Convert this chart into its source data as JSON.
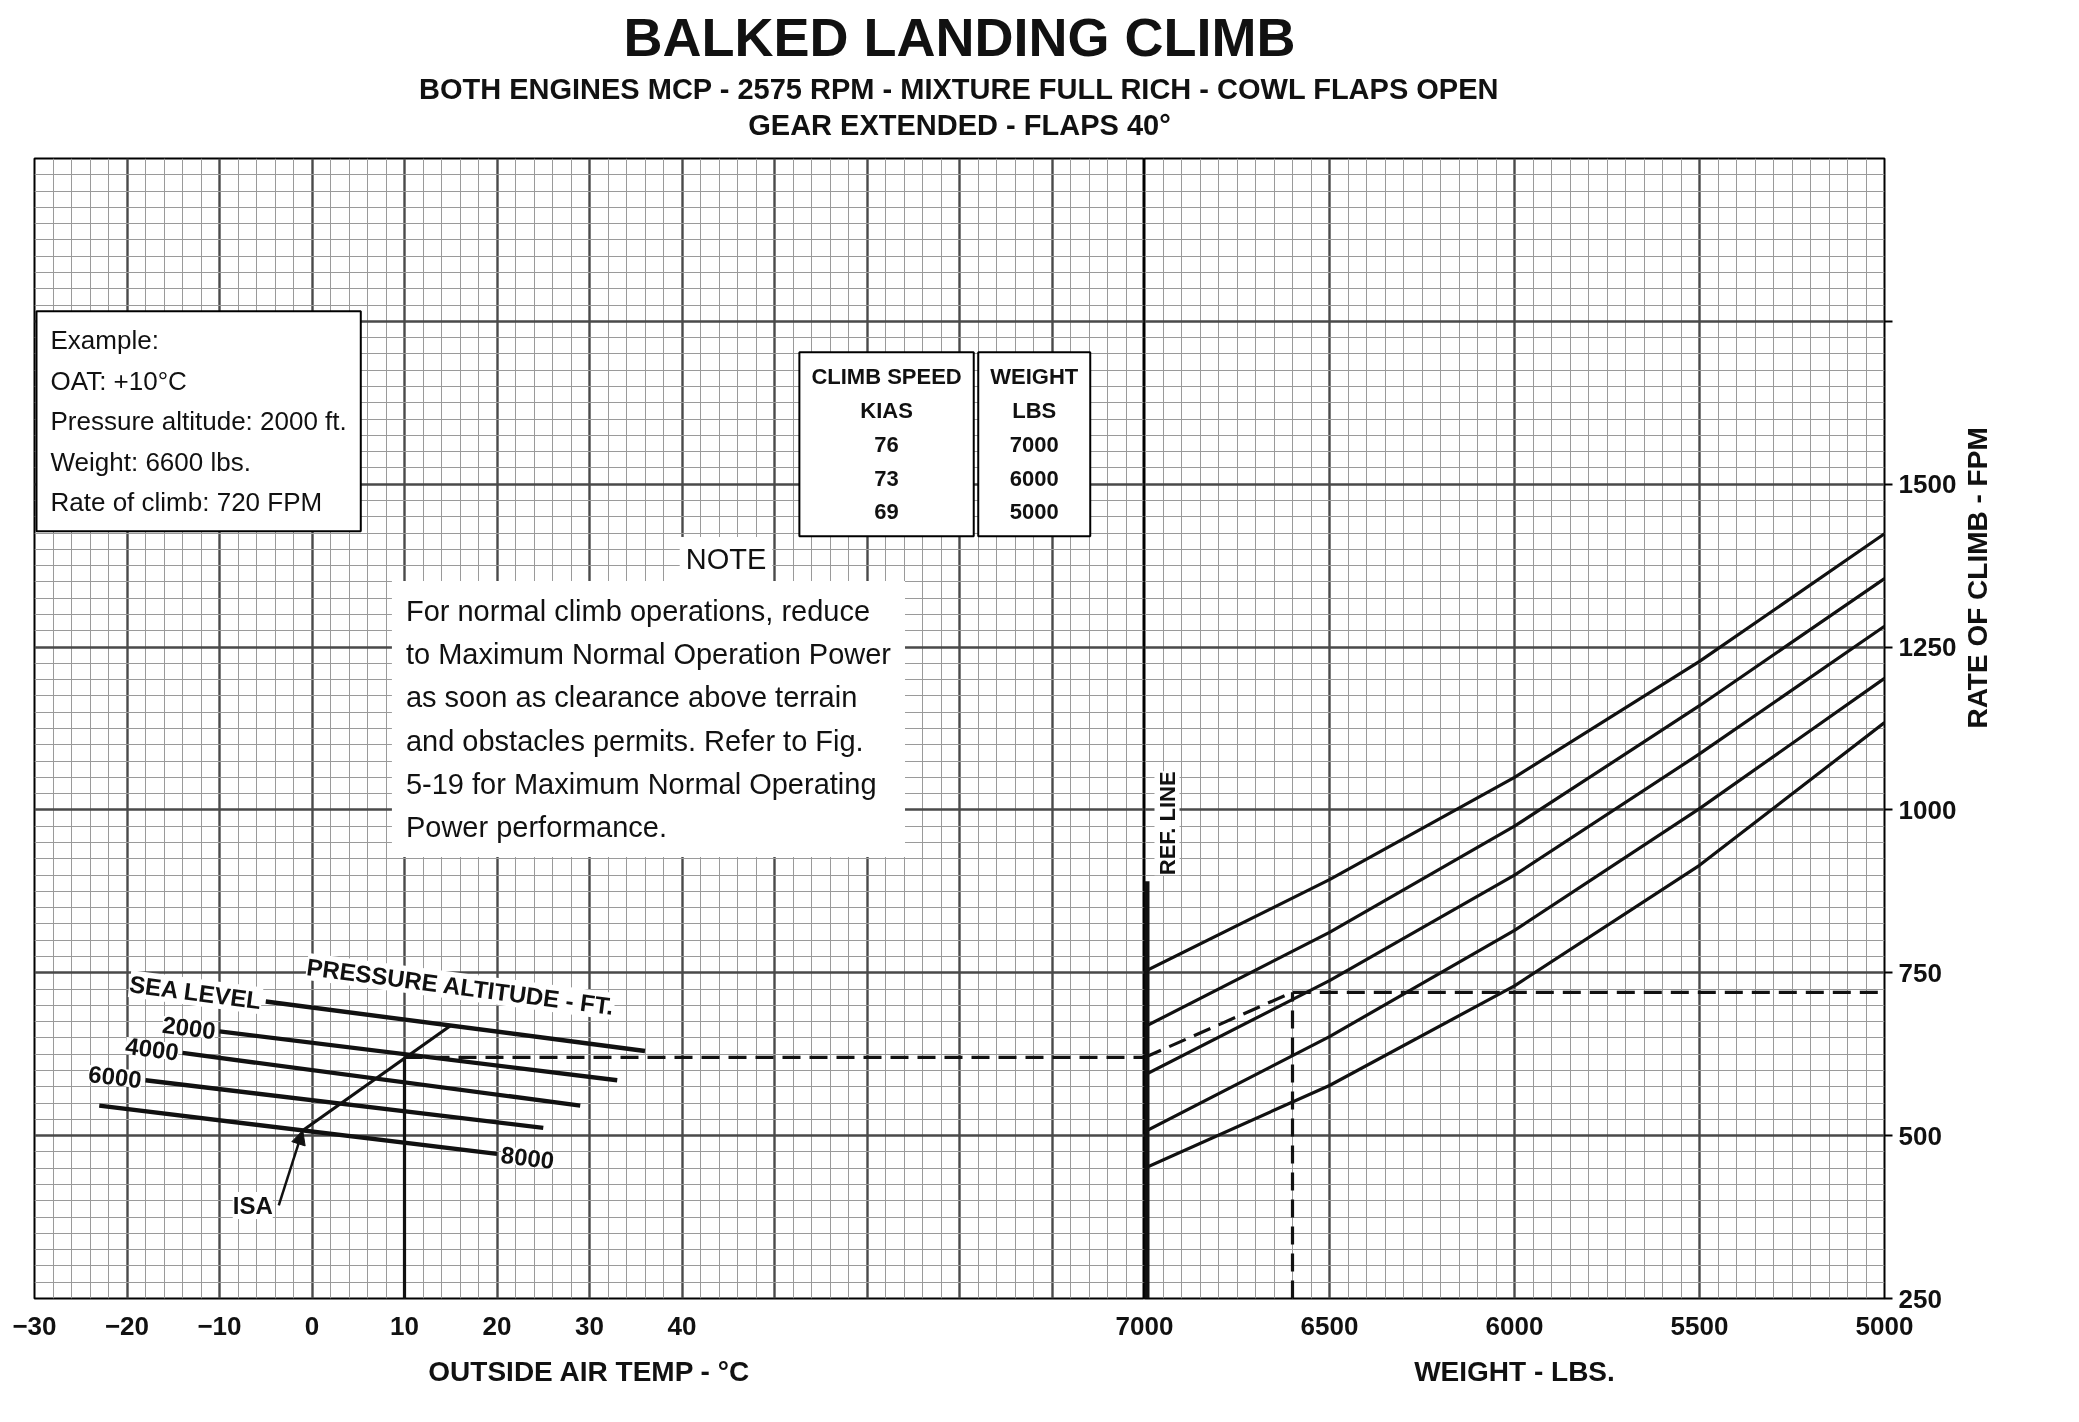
{
  "chart_data": [
    {
      "type": "line",
      "title": "BALKED LANDING CLIMB",
      "subtitle": "BOTH ENGINES MCP - 2575 RPM - MIXTURE FULL RICH - COWL FLAPS OPEN\nGEAR EXTENDED - FLAPS 40°",
      "xlabel": "OUTSIDE AIR TEMP - °C",
      "xlim": [
        -30,
        90
      ],
      "xticks": [
        -30,
        -20,
        -10,
        0,
        10,
        20,
        30,
        40,
        {
          "value": 50,
          "label": null
        },
        {
          "value": 60,
          "label": null
        },
        {
          "value": 70,
          "label": null
        },
        {
          "value": 80,
          "label": null
        }
      ],
      "ylim": [
        250,
        2000
      ],
      "yticks": [
        250,
        500,
        750,
        1000,
        1250,
        1500,
        {
          "value": 1750,
          "label": null
        }
      ],
      "tick_labels": "x",
      "grid": true,
      "annotations": [
        "Example:\nOAT: +10°C\nPressure altitude: 2000 ft.\nWeight: 6600 lbs.\nRate of climb: 720 FPM",
        "CLIMB SPEED\nKIAS\n76\n73\n69",
        "WEIGHT\nLBS\n7000\n6000\n5000",
        "NOTE\nFor normal climb operations, reduce\nto Maximum Normal Operation Power\nas soon as clearance above terrain\nand obstacles permits. Refer to Fig.\n5-19 for Maximum Normal Operating\nPower performance.",
        "PRESSURE ALTITUDE - FT.",
        {
          "text": "ISA",
          "x": -1,
          "y": 508
        }
      ],
      "series": [
        {
          "name": "SEA LEVEL",
          "color": "#111111",
          "x": [
            -5,
            36
          ],
          "values": [
            706,
            630
          ]
        },
        {
          "name": "2000",
          "color": "#111111",
          "x": [
            -10,
            33
          ],
          "values": [
            660,
            585
          ]
        },
        {
          "name": "4000",
          "color": "#111111",
          "x": [
            -14,
            29
          ],
          "values": [
            627,
            546
          ]
        },
        {
          "name": "6000",
          "color": "#111111",
          "x": [
            -18,
            25
          ],
          "values": [
            585,
            512
          ]
        },
        {
          "name": "8000",
          "color": "#111111",
          "x": [
            -23,
            20
          ],
          "values": [
            546,
            472
          ]
        },
        {
          "color": "#111111",
          "x": [
            -1,
            15
          ],
          "values": [
            508,
            669
          ]
        },
        {
          "color": "#111111",
          "x": [
            10,
            10
          ],
          "values": [
            250,
            620
          ],
          "line_style": "solid"
        },
        {
          "color": "#111111",
          "x": [
            10,
            90
          ],
          "values": [
            620,
            620
          ],
          "line_style": "dashed"
        }
      ]
    },
    {
      "type": "line",
      "xlabel": "WEIGHT - LBS.",
      "ylabel": "RATE OF CLIMB - FPM",
      "xlim": [
        7000,
        5000
      ],
      "xticks": [
        7000,
        6500,
        6000,
        5500,
        5000
      ],
      "ylim": [
        250,
        2000
      ],
      "yticks": [
        250,
        500,
        750,
        1000,
        1250,
        1500,
        {
          "value": 1750,
          "label": null
        }
      ],
      "grid": true,
      "x": [
        7000,
        6500,
        6000,
        5500,
        5000
      ],
      "ref_lines": [
        {
          "axis": "x",
          "value": 7000,
          "label": "REF. LINE"
        }
      ],
      "series": [
        {
          "color": "#111111",
          "values": [
            752,
            893,
            1050,
            1228,
            1424
          ]
        },
        {
          "color": "#111111",
          "values": [
            667,
            812,
            975,
            1160,
            1355
          ]
        },
        {
          "color": "#111111",
          "values": [
            593,
            738,
            900,
            1086,
            1282
          ]
        },
        {
          "color": "#111111",
          "values": [
            506,
            652,
            815,
            1002,
            1202
          ]
        },
        {
          "color": "#111111",
          "values": [
            450,
            577,
            730,
            915,
            1134
          ]
        },
        {
          "color": "#111111",
          "x": [
            7000,
            6600,
            5000
          ],
          "values": [
            620,
            720,
            720
          ],
          "line_style": "dashed"
        },
        {
          "color": "#111111",
          "x": [
            6600,
            6600
          ],
          "values": [
            250,
            720
          ],
          "line_style": "dashed"
        }
      ]
    }
  ]
}
